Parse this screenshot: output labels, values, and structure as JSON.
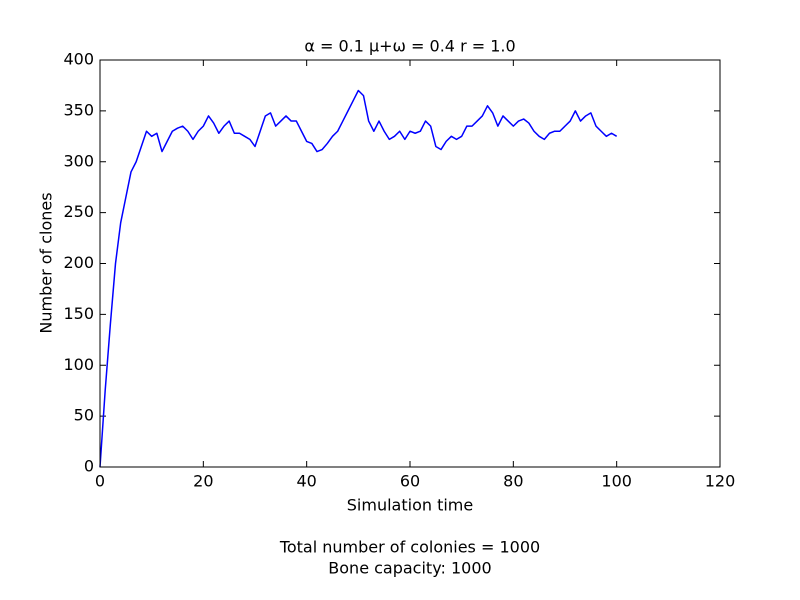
{
  "chart_data": {
    "type": "line",
    "title": "α = 0.1 μ+ω = 0.4 r = 1.0",
    "x_label": "Simulation time",
    "y_label": "Number of clones",
    "annotations": [
      "Total number of colonies = 1000",
      "Bone capacity: 1000"
    ],
    "x": [
      0,
      1,
      2,
      3,
      4,
      5,
      6,
      7,
      8,
      9,
      10,
      11,
      12,
      13,
      14,
      15,
      16,
      17,
      18,
      19,
      20,
      21,
      22,
      23,
      24,
      25,
      26,
      27,
      28,
      29,
      30,
      31,
      32,
      33,
      34,
      35,
      36,
      37,
      38,
      39,
      40,
      41,
      42,
      43,
      44,
      45,
      46,
      47,
      48,
      49,
      50,
      51,
      52,
      53,
      54,
      55,
      56,
      57,
      58,
      59,
      60,
      61,
      62,
      63,
      64,
      65,
      66,
      67,
      68,
      69,
      70,
      71,
      72,
      73,
      74,
      75,
      76,
      77,
      78,
      79,
      80,
      81,
      82,
      83,
      84,
      85,
      86,
      87,
      88,
      89,
      90,
      91,
      92,
      93,
      94,
      95,
      96,
      97,
      98,
      99,
      100
    ],
    "series": [
      {
        "color": "#0000ff",
        "values": [
          0,
          75,
          140,
          200,
          240,
          265,
          290,
          300,
          315,
          330,
          325,
          328,
          310,
          320,
          330,
          333,
          335,
          330,
          322,
          330,
          335,
          345,
          338,
          328,
          335,
          340,
          328,
          328,
          325,
          322,
          315,
          330,
          345,
          348,
          335,
          340,
          345,
          340,
          340,
          330,
          320,
          318,
          310,
          312,
          318,
          325,
          330,
          340,
          350,
          360,
          370,
          365,
          340,
          330,
          340,
          330,
          322,
          325,
          330,
          322,
          330,
          328,
          330,
          340,
          335,
          315,
          312,
          320,
          325,
          322,
          325,
          335,
          335,
          340,
          345,
          355,
          348,
          335,
          345,
          340,
          335,
          340,
          342,
          338,
          330,
          325,
          322,
          328,
          330,
          330,
          335,
          340,
          350,
          340,
          345,
          348,
          335,
          330,
          325,
          328,
          325
        ]
      }
    ],
    "xlim": [
      0,
      120
    ],
    "ylim": [
      0,
      400
    ],
    "xticks": [
      0,
      20,
      40,
      60,
      80,
      100,
      120
    ],
    "yticks": [
      0,
      50,
      100,
      150,
      200,
      250,
      300,
      350,
      400
    ],
    "grid": false
  }
}
